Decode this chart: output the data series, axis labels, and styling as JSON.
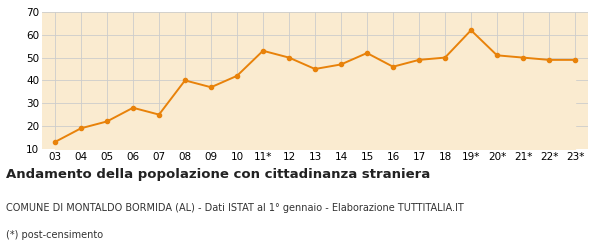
{
  "x_labels": [
    "03",
    "04",
    "05",
    "06",
    "07",
    "08",
    "09",
    "10",
    "11*",
    "12",
    "13",
    "14",
    "15",
    "16",
    "17",
    "18",
    "19*",
    "20*",
    "21*",
    "22*",
    "23*"
  ],
  "y_values": [
    13,
    19,
    22,
    28,
    25,
    40,
    37,
    42,
    53,
    50,
    45,
    47,
    52,
    46,
    49,
    50,
    62,
    51,
    50,
    49,
    49
  ],
  "line_color": "#e8820a",
  "fill_color": "#faebd0",
  "marker": "o",
  "marker_size": 3,
  "line_width": 1.4,
  "ylim": [
    10,
    70
  ],
  "yticks": [
    10,
    20,
    30,
    40,
    50,
    60,
    70
  ],
  "grid_color": "#cccccc",
  "plot_bg_color": "#faebd0",
  "title": "Andamento della popolazione con cittadinanza straniera",
  "subtitle": "COMUNE DI MONTALDO BORMIDA (AL) - Dati ISTAT al 1° gennaio - Elaborazione TUTTITALIA.IT",
  "footnote": "(*) post-censimento",
  "title_fontsize": 9.5,
  "subtitle_fontsize": 7.0,
  "footnote_fontsize": 7.0,
  "tick_fontsize": 7.5
}
